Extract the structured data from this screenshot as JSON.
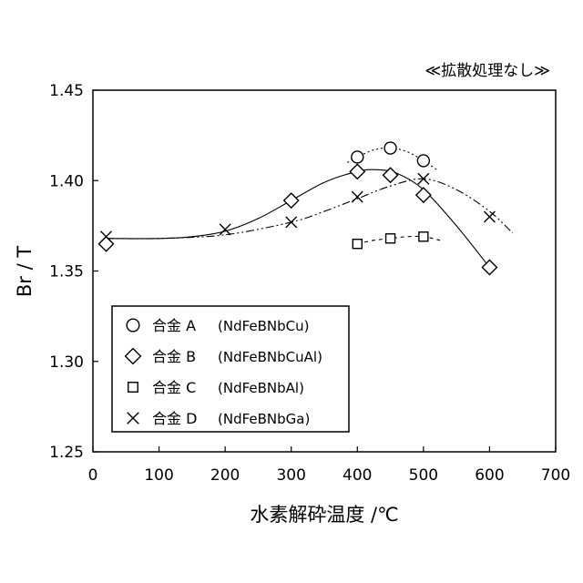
{
  "chart_data": {
    "type": "scatter",
    "title": "≪拡散処理なし≫",
    "xlabel": "水素解砕温度 /℃",
    "ylabel": "Br / T",
    "xlim": [
      0,
      700
    ],
    "ylim": [
      1.25,
      1.45
    ],
    "xticks": [
      "0",
      "100",
      "200",
      "300",
      "400",
      "500",
      "600",
      "700"
    ],
    "yticks": [
      "1.25",
      "1.30",
      "1.35",
      "1.40",
      "1.45"
    ],
    "grid": false,
    "legend_position": "bottom-left",
    "series": [
      {
        "name": "合金 A",
        "formula": "(NdFeBNbCu)",
        "marker": "circle",
        "line": "dotted",
        "x": [
          400,
          450,
          500
        ],
        "y": [
          1.413,
          1.418,
          1.411
        ],
        "trend_x": [
          385,
          400,
          425,
          450,
          475,
          500,
          520
        ],
        "trend_y": [
          1.41,
          1.413,
          1.417,
          1.418,
          1.416,
          1.411,
          1.406
        ]
      },
      {
        "name": "合金 B",
        "formula": "(NdFeBNbCuAl)",
        "marker": "diamond",
        "line": "solid",
        "x": [
          20,
          300,
          400,
          450,
          500,
          600
        ],
        "y": [
          1.365,
          1.389,
          1.405,
          1.403,
          1.392,
          1.352
        ],
        "trend_x": [
          20,
          100,
          150,
          200,
          250,
          300,
          350,
          400,
          430,
          460,
          500,
          550,
          600
        ],
        "trend_y": [
          1.368,
          1.368,
          1.369,
          1.372,
          1.379,
          1.389,
          1.399,
          1.405,
          1.406,
          1.404,
          1.395,
          1.375,
          1.352
        ]
      },
      {
        "name": "合金 C",
        "formula": "(NdFeBNbAl)",
        "marker": "square",
        "line": "dashed",
        "x": [
          400,
          450,
          500
        ],
        "y": [
          1.365,
          1.368,
          1.369
        ],
        "trend_x": [
          400,
          425,
          450,
          475,
          500,
          525
        ],
        "trend_y": [
          1.365,
          1.367,
          1.368,
          1.369,
          1.369,
          1.367
        ]
      },
      {
        "name": "合金 D",
        "formula": "(NdFeBNbGa)",
        "marker": "cross",
        "line": "dashdot",
        "x": [
          20,
          200,
          300,
          400,
          500,
          600
        ],
        "y": [
          1.369,
          1.373,
          1.377,
          1.391,
          1.401,
          1.38
        ],
        "trend_x": [
          20,
          100,
          200,
          300,
          350,
          400,
          450,
          500,
          550,
          600,
          635
        ],
        "trend_y": [
          1.368,
          1.368,
          1.37,
          1.377,
          1.383,
          1.39,
          1.397,
          1.401,
          1.395,
          1.383,
          1.371
        ]
      }
    ]
  }
}
